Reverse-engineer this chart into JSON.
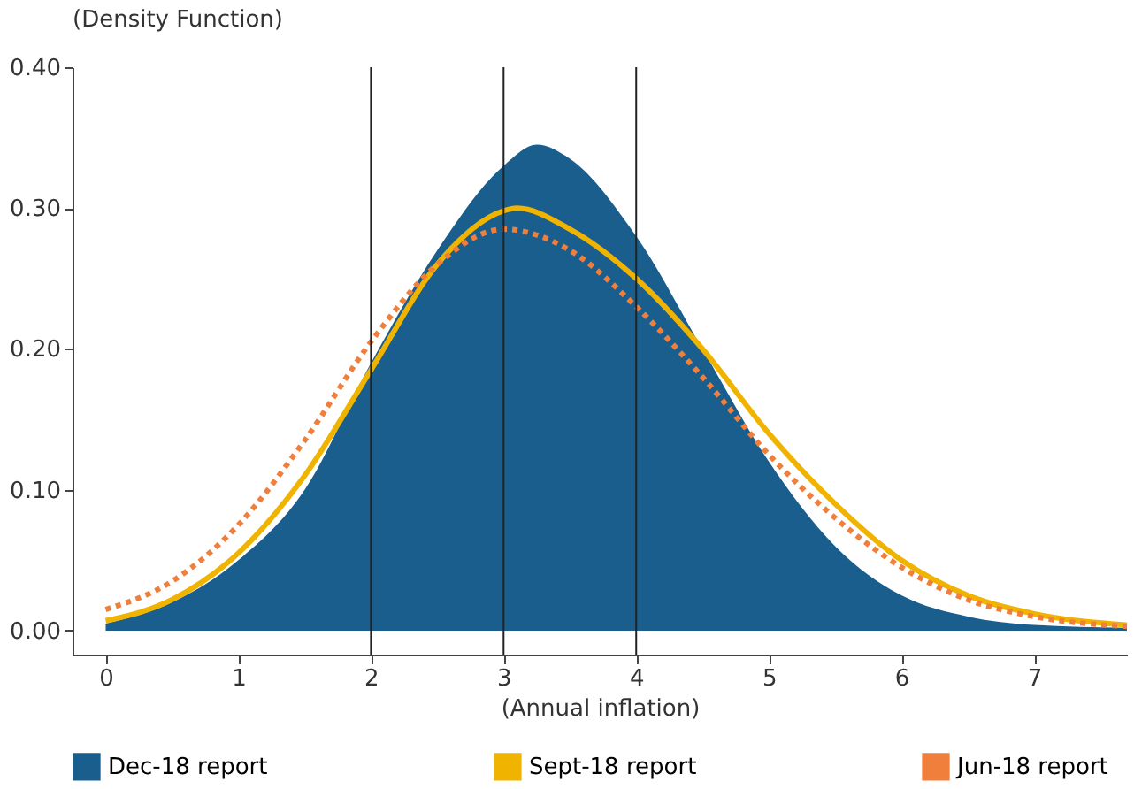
{
  "chart_data": {
    "type": "line",
    "subtitle": "(Density Function)",
    "xlabel": "(Annual inflation)",
    "xlim": [
      -0.25,
      7.7
    ],
    "ylim": [
      -0.017,
      0.4
    ],
    "xticks": [
      0,
      1,
      2,
      3,
      4,
      5,
      6,
      7
    ],
    "yticks": [
      {
        "value": 0,
        "label": "0.00"
      },
      {
        "value": 0.1,
        "label": "0.10"
      },
      {
        "value": 0.2,
        "label": "0.20"
      },
      {
        "value": 0.3,
        "label": "0.30"
      },
      {
        "value": 0.4,
        "label": "0.40"
      }
    ],
    "grid": false,
    "legend": "bottom",
    "ref_lines": [
      {
        "axis": "x",
        "value": 2,
        "color": "#222222"
      },
      {
        "axis": "x",
        "value": 3,
        "color": "#222222"
      },
      {
        "axis": "x",
        "value": 4,
        "color": "#222222"
      }
    ],
    "series": [
      {
        "name": "Dec-18  report",
        "type": "area",
        "color": "#1a5e8e",
        "x": [
          0,
          0.5,
          1,
          1.5,
          2,
          2.5,
          3,
          3.25,
          3.5,
          4,
          4.5,
          5,
          5.5,
          6,
          6.5,
          7,
          7.7
        ],
        "values": [
          0.005,
          0.02,
          0.05,
          0.1,
          0.19,
          0.27,
          0.33,
          0.345,
          0.335,
          0.28,
          0.2,
          0.12,
          0.06,
          0.025,
          0.01,
          0.004,
          0.002
        ]
      },
      {
        "name": "Sept-18  report",
        "line_style": "solid",
        "color": "#f0b400",
        "x": [
          0,
          0.5,
          1,
          1.5,
          2,
          2.5,
          3,
          3.1,
          3.5,
          4,
          4.5,
          5,
          5.5,
          6,
          6.5,
          7,
          7.7
        ],
        "values": [
          0.007,
          0.022,
          0.055,
          0.11,
          0.185,
          0.26,
          0.298,
          0.3,
          0.285,
          0.25,
          0.2,
          0.14,
          0.09,
          0.05,
          0.025,
          0.012,
          0.004
        ]
      },
      {
        "name": "Jun-18  report",
        "line_style": "dotted",
        "color": "#f07f3c",
        "x": [
          0,
          0.5,
          1,
          1.5,
          2,
          2.5,
          3,
          3.5,
          4,
          4.5,
          5,
          5.5,
          6,
          6.5,
          7,
          7.7
        ],
        "values": [
          0.015,
          0.035,
          0.075,
          0.135,
          0.205,
          0.26,
          0.285,
          0.27,
          0.23,
          0.18,
          0.125,
          0.08,
          0.045,
          0.022,
          0.01,
          0.003
        ]
      }
    ]
  }
}
